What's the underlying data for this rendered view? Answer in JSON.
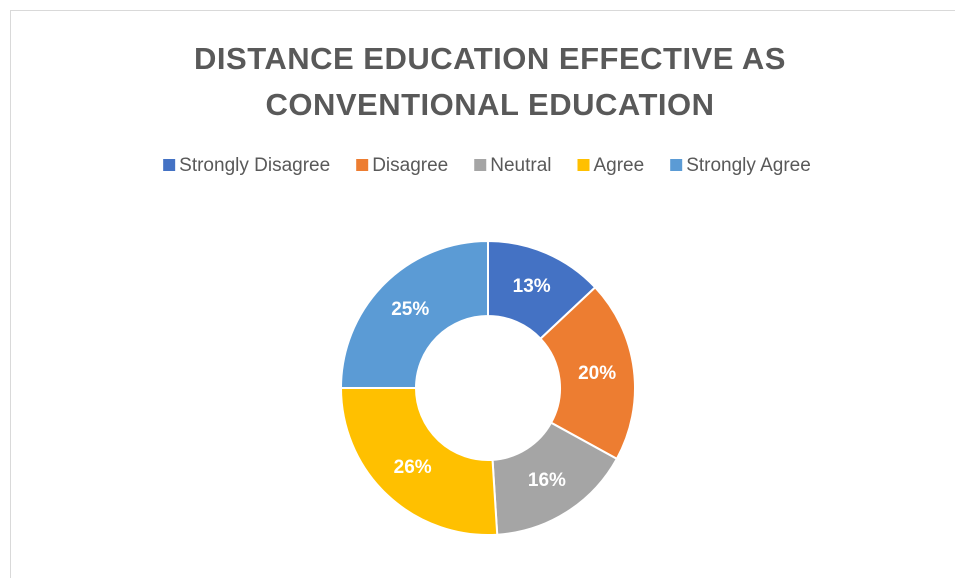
{
  "chart_data": {
    "type": "donut",
    "title": "DISTANCE EDUCATION EFFECTIVE AS CONVENTIONAL EDUCATION",
    "categories": [
      "Strongly Disagree",
      "Disagree",
      "Neutral",
      "Agree",
      "Strongly Agree"
    ],
    "values": [
      13,
      20,
      16,
      26,
      25
    ],
    "value_labels": [
      "13%",
      "20%",
      "16%",
      "26%",
      "25%"
    ],
    "colors": [
      "#4472c4",
      "#ed7d31",
      "#a5a5a5",
      "#ffc000",
      "#5b9bd5"
    ],
    "legend": "top"
  }
}
